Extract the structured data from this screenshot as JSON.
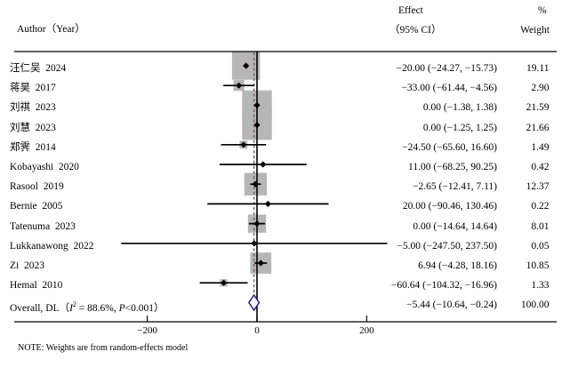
{
  "header": {
    "author": "Author（Year）",
    "effect_line1": "Effect",
    "effect_line2": "（95% CI）",
    "percent": "%",
    "weight": "Weight"
  },
  "note": "NOTE: Weights are from random-effects model",
  "colors": {
    "box": "#b6b6b6",
    "marker": "#000000",
    "zero_line": "#000000",
    "overall_dashed": "#8a5351",
    "diamond": "#22228c",
    "rule": "#000000"
  },
  "chart_data": {
    "type": "forest",
    "x_ticks": [
      -200,
      0,
      200
    ],
    "x_tick_labels": [
      "−200",
      "0",
      "200"
    ],
    "studies": [
      {
        "author": "汪仁吴  2024",
        "effect": -20.0,
        "ci_low": -24.27,
        "ci_high": -15.73,
        "weight": 19.11,
        "effect_label": "−20.00 (−24.27, −15.73)",
        "weight_label": "19.11"
      },
      {
        "author": "蒋昊  2017",
        "effect": -33.0,
        "ci_low": -61.44,
        "ci_high": -4.56,
        "weight": 2.9,
        "effect_label": "−33.00 (−61.44, −4.56)",
        "weight_label": "2.90"
      },
      {
        "author": "刘祺  2023",
        "effect": 0.0,
        "ci_low": -1.38,
        "ci_high": 1.38,
        "weight": 21.59,
        "effect_label": "0.00 (−1.38, 1.38)",
        "weight_label": "21.59"
      },
      {
        "author": "刘慧  2023",
        "effect": 0.0,
        "ci_low": -1.25,
        "ci_high": 1.25,
        "weight": 21.66,
        "effect_label": "0.00 (−1.25, 1.25)",
        "weight_label": "21.66"
      },
      {
        "author": "郑霁  2014",
        "effect": -24.5,
        "ci_low": -65.6,
        "ci_high": 16.6,
        "weight": 1.49,
        "effect_label": "−24.50 (−65.60, 16.60)",
        "weight_label": "1.49"
      },
      {
        "author": "Kobayashi  2020",
        "effect": 11.0,
        "ci_low": -68.25,
        "ci_high": 90.25,
        "weight": 0.42,
        "effect_label": "11.00 (−68.25, 90.25)",
        "weight_label": "0.42"
      },
      {
        "author": "Rasool  2019",
        "effect": -2.65,
        "ci_low": -12.41,
        "ci_high": 7.11,
        "weight": 12.37,
        "effect_label": "−2.65 (−12.41, 7.11)",
        "weight_label": "12.37"
      },
      {
        "author": "Bernie  2005",
        "effect": 20.0,
        "ci_low": -90.46,
        "ci_high": 130.46,
        "weight": 0.22,
        "effect_label": "20.00 (−90.46, 130.46)",
        "weight_label": "0.22"
      },
      {
        "author": "Tatenuma  2023",
        "effect": 0.0,
        "ci_low": -14.64,
        "ci_high": 14.64,
        "weight": 8.01,
        "effect_label": "0.00 (−14.64, 14.64)",
        "weight_label": "8.01"
      },
      {
        "author": "Lukkanawong  2022",
        "effect": -5.0,
        "ci_low": -247.5,
        "ci_high": 237.5,
        "weight": 0.05,
        "effect_label": "−5.00 (−247.50, 237.50)",
        "weight_label": "0.05"
      },
      {
        "author": "Zi  2023",
        "effect": 6.94,
        "ci_low": -4.28,
        "ci_high": 18.16,
        "weight": 10.85,
        "effect_label": "6.94 (−4.28, 18.16)",
        "weight_label": "10.85"
      },
      {
        "author": "Hemal  2010",
        "effect": -60.64,
        "ci_low": -104.32,
        "ci_high": -16.96,
        "weight": 1.33,
        "effect_label": "−60.64 (−104.32, −16.96)",
        "weight_label": "1.33"
      }
    ],
    "overall": {
      "label_prefix": "Overall, DL（",
      "i2_symbol": "I",
      "i2_sup": "2",
      "i2_rest": " = 88.6%, ",
      "p_symbol": "P",
      "p_rest": "<0.001）",
      "effect": -5.44,
      "ci_low": -10.64,
      "ci_high": -0.24,
      "effect_label": "−5.44 (−10.64, −0.24)",
      "weight_label": "100.00"
    }
  }
}
